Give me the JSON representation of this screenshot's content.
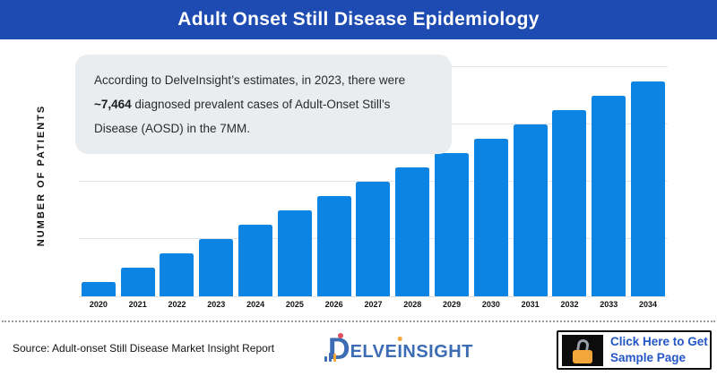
{
  "header": {
    "title": "Adult Onset Still Disease Epidemiology"
  },
  "annotation": {
    "text_before": "According to DelveInsight’s estimates, in 2023, there were ",
    "highlight": "~7,464",
    "text_after": " diagnosed prevalent cases of Adult-Onset Still’s Disease (AOSD) in the 7MM."
  },
  "chart_data": {
    "type": "bar",
    "title": "Adult Onset Still Disease Epidemiology",
    "ylabel": "NUMBER OF PATIENTS",
    "xlabel": "",
    "categories": [
      "2020",
      "2021",
      "2022",
      "2023",
      "2024",
      "2025",
      "2026",
      "2027",
      "2028",
      "2029",
      "2030",
      "2031",
      "2032",
      "2033",
      "2034"
    ],
    "values": [
      1870,
      3730,
      5600,
      7464,
      9330,
      11200,
      13060,
      14930,
      16790,
      18660,
      20530,
      22390,
      24260,
      26120,
      27990
    ],
    "values_estimated": true,
    "anchor": {
      "year": "2023",
      "value": 7464,
      "note": "~7,464 diagnosed prevalent cases of AOSD in the 7MM (stated in annotation); other values estimated from bar heights, y-axis has no numeric tick labels"
    },
    "ylim": [
      0,
      29856
    ],
    "y_tick_labels": [],
    "y_gridlines": 4,
    "grid": "horizontal",
    "legend": "none",
    "bar_color": "#0c84e4"
  },
  "footer": {
    "source": "Source: Adult-onset Still Disease Market Insight Report",
    "logo": {
      "d": "D",
      "rest_1": "ELVE",
      "rest_i": "I",
      "rest_2": "NSIGHT"
    },
    "cta": {
      "label": "Click Here to Get Sample Page",
      "icon": "open-padlock-icon"
    }
  },
  "colors": {
    "header_bg": "#1d4bb1",
    "bar": "#0c84e4",
    "annotation_bg": "#e9edf0",
    "grid": "#e2e4e6",
    "cta_text": "#2456c5",
    "logo_blue": "#3c6cb4",
    "accent_orange": "#f3a73a",
    "accent_red": "#e04f5f"
  }
}
